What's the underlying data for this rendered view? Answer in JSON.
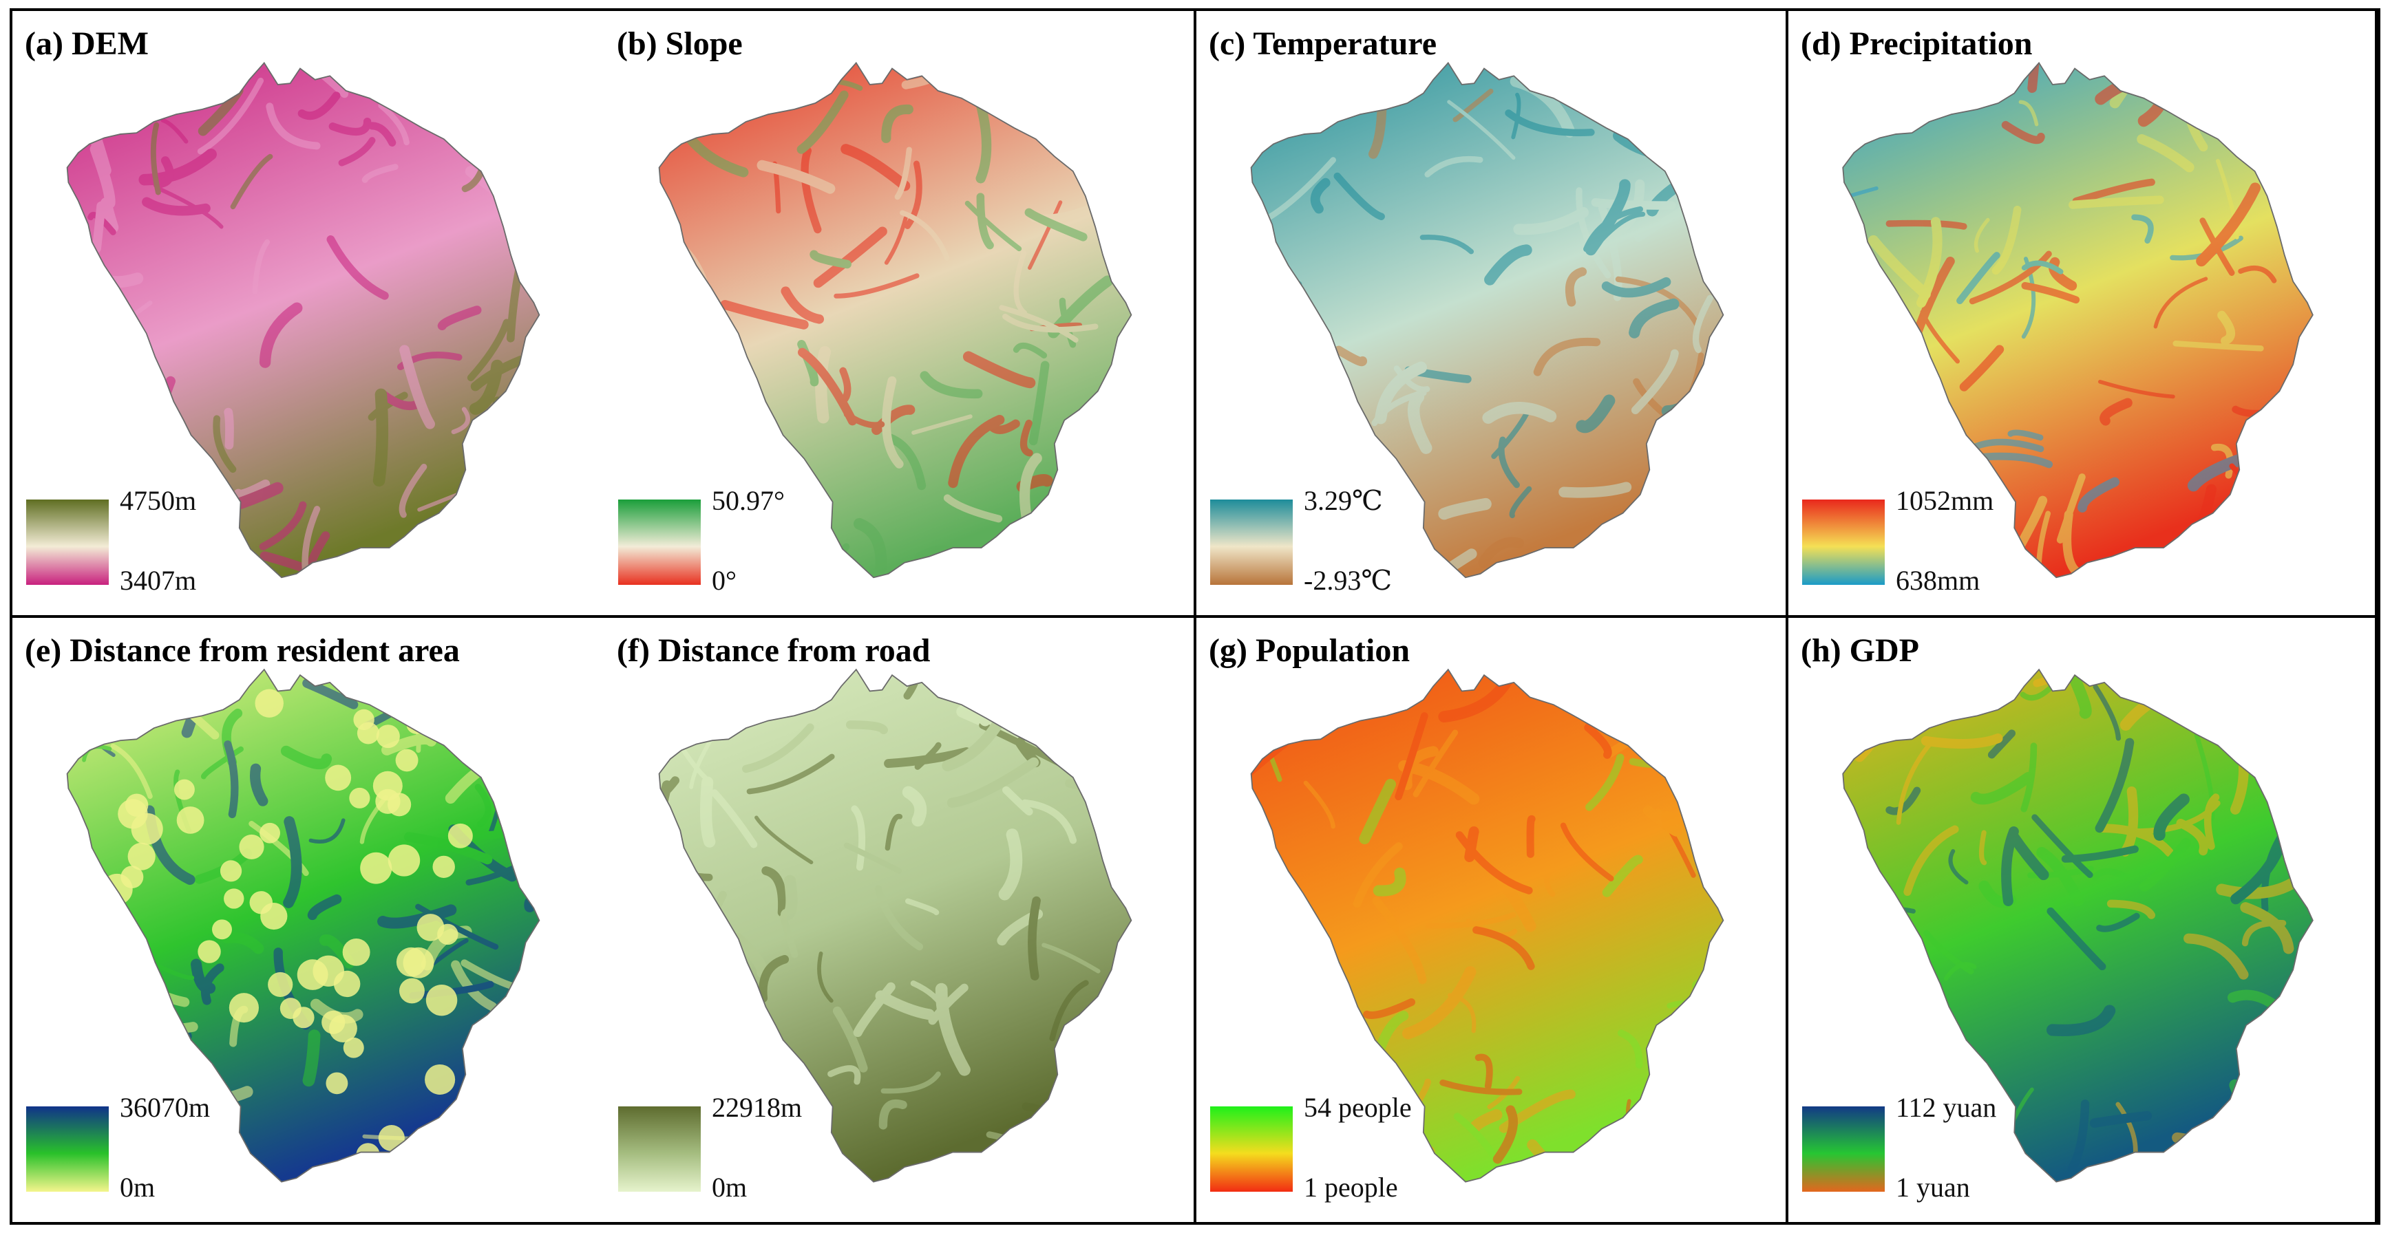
{
  "panels": [
    {
      "title": "(a) DEM",
      "legend_max": "4750m",
      "legend_min": "3407m",
      "colors": {
        "high": "#5f6e22",
        "mid": "#f3ecd6",
        "low": "#c8217e",
        "map_low": "#c8217e",
        "map_mid": "#ea9cc8",
        "map_high": "#6e7a2a"
      }
    },
    {
      "title": "(b) Slope",
      "legend_max": "50.97°",
      "legend_min": "0°",
      "colors": {
        "high": "#1a9e3a",
        "mid": "#f2ecd8",
        "low": "#e8301f",
        "map_low": "#e5301e",
        "map_mid": "#e8d7b6",
        "map_high": "#5cae5a"
      }
    },
    {
      "title": "(c) Temperature",
      "legend_max": "3.29℃",
      "legend_min": "-2.93℃",
      "colors": {
        "high": "#1d8c9a",
        "mid": "#efe6c8",
        "low": "#b8743a",
        "map_low": "#1e8c9a",
        "map_mid": "#c5e0cf",
        "map_high": "#c47b3e"
      }
    },
    {
      "title": "(d) Precipitation",
      "legend_max": "1052mm",
      "legend_min": "638mm",
      "colors": {
        "high": "#e9281c",
        "mid": "#f5e055",
        "low": "#1a9bc7",
        "map_low": "#2a9ccc",
        "map_mid": "#e4e060",
        "map_high": "#e8301c"
      }
    },
    {
      "title": "(e) Distance from resident area",
      "legend_max": "36070m",
      "legend_min": "0m",
      "colors": {
        "high": "#10338a",
        "mid": "#29c12a",
        "low": "#f4f58c",
        "map_low": "#eef28c",
        "map_mid": "#2fc42e",
        "map_high": "#153a8e"
      }
    },
    {
      "title": "(f) Distance from road",
      "legend_max": "22918m",
      "legend_min": "0m",
      "colors": {
        "high": "#5e6c2f",
        "mid": "#a5bd80",
        "low": "#e6f3cc",
        "map_low": "#dceec2",
        "map_mid": "#b2c993",
        "map_high": "#5d6c30"
      }
    },
    {
      "title": "(g) Population",
      "legend_max": "54 people",
      "legend_min": "1 people",
      "colors": {
        "high": "#1ef01a",
        "mid": "#f4dd1e",
        "low": "#f22c12",
        "map_low": "#ef4a16",
        "map_mid": "#f59a1c",
        "map_high": "#7fe02c"
      }
    },
    {
      "title": "(h) GDP",
      "legend_max": "112 yuan",
      "legend_min": "1 yuan",
      "colors": {
        "high": "#123a86",
        "mid": "#26c633",
        "low": "#e4671e",
        "map_low": "#f0b01e",
        "map_mid": "#3ecb2e",
        "map_high": "#145a80"
      }
    }
  ]
}
